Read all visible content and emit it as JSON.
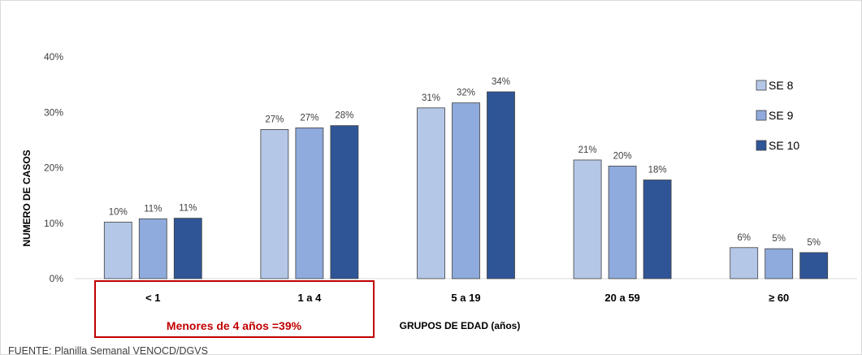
{
  "chart_data": {
    "type": "bar",
    "categories": [
      "< 1",
      "1 a 4",
      "5 a 19",
      "20 a 59",
      "≥ 60"
    ],
    "series": [
      {
        "name": "SE 8",
        "values": [
          10,
          27,
          31,
          21,
          6
        ],
        "labels": [
          "10%",
          "27%",
          "31%",
          "21%",
          "6%"
        ],
        "heights": [
          10.2,
          26.9,
          30.8,
          21.4,
          5.6
        ],
        "color": "#b4c7e7"
      },
      {
        "name": "SE 9",
        "values": [
          11,
          27,
          32,
          20,
          5
        ],
        "labels": [
          "11%",
          "27%",
          "32%",
          "20%",
          "5%"
        ],
        "heights": [
          10.8,
          27.2,
          31.7,
          20.3,
          5.4
        ],
        "color": "#8faadc"
      },
      {
        "name": "SE 10",
        "values": [
          11,
          28,
          34,
          18,
          5
        ],
        "labels": [
          "11%",
          "28%",
          "34%",
          "18%",
          "5%"
        ],
        "heights": [
          10.9,
          27.6,
          33.7,
          17.8,
          4.7
        ],
        "color": "#2f5597"
      }
    ],
    "ylim": [
      0,
      40
    ],
    "yticks": [
      0,
      10,
      20,
      30,
      40
    ],
    "ytick_labels": [
      "0%",
      "10%",
      "20%",
      "30%",
      "40%"
    ],
    "ylabel": "NUMERO DE CASOS",
    "xlabel": "GRUPOS DE EDAD (años)",
    "legend_position": "right",
    "annotation": "Menores de 4 años =39%",
    "annotation_color": "#c00000",
    "source": "FUENTE: Planilla Semanal VENOCD/DGVS"
  }
}
